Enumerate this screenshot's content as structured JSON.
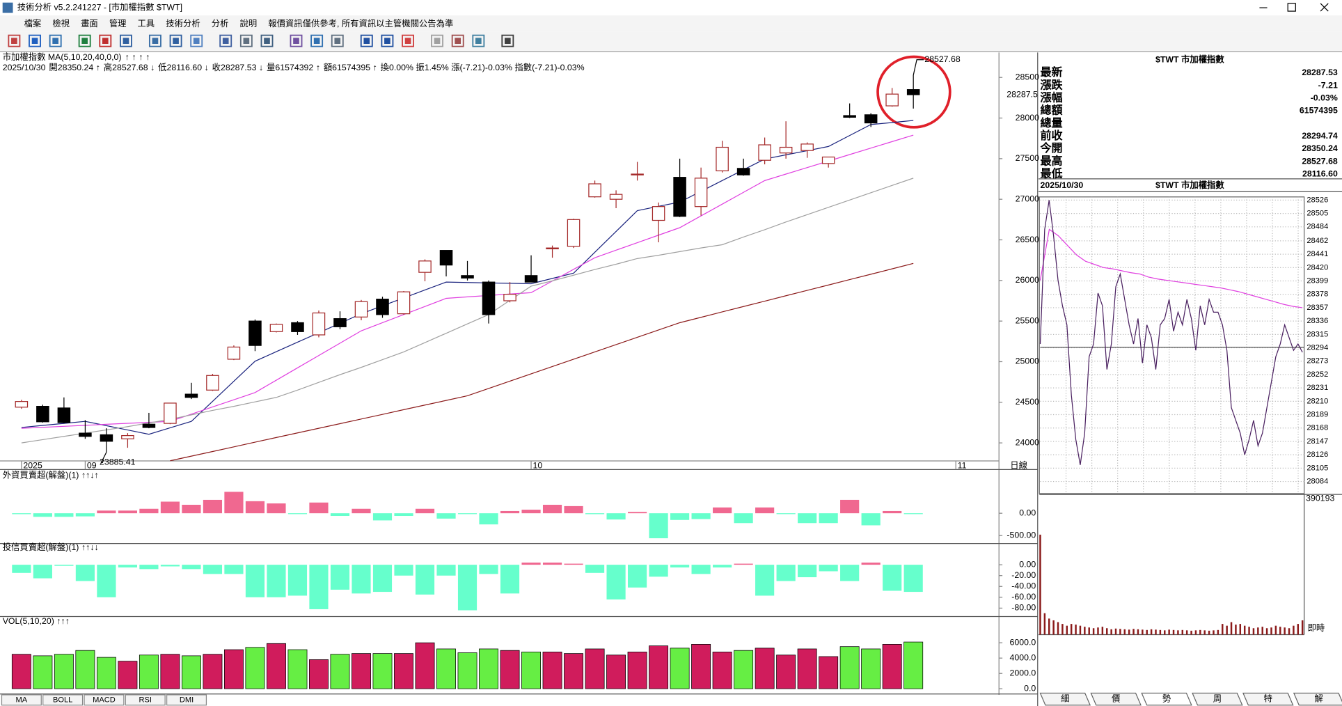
{
  "window": {
    "title": "技術分析 v5.2.241227 - [市加權指數 $TWT]"
  },
  "menu": [
    "檔案",
    "檢視",
    "畫面",
    "管理",
    "工具",
    "技術分析",
    "分析",
    "說明",
    "報價資訊僅供參考, 所有資訊以主管機關公告為準"
  ],
  "main_chart": {
    "type": "candlestick",
    "header": "市加權指數 MA(5,10,20,40,0,0)",
    "arrows": [
      "↑",
      "↑",
      "↑",
      "↑"
    ],
    "info": [
      {
        "text": "2025/10/30",
        "color": "#000000"
      },
      {
        "text": "開28350.24 ↑",
        "color": "#d00000"
      },
      {
        "text": "高28527.68 ↓",
        "color": "#d00000"
      },
      {
        "text": "低28116.60 ↓",
        "color": "#000000"
      },
      {
        "text": "收28287.53 ↓",
        "color": "#000000"
      },
      {
        "text": "量61574392 ↑",
        "color": "#000000"
      },
      {
        "text": "額61574395 ↑",
        "color": "#000000"
      },
      {
        "text": "換0.00% 振1.45% 漲(-7.21)-0.03% 指數(-7.21)-0.03%",
        "color": "#000000"
      }
    ],
    "categories": [
      "2025",
      null,
      null,
      "09",
      null,
      null,
      null,
      null,
      null,
      null,
      null,
      null,
      null,
      null,
      null,
      null,
      null,
      null,
      null,
      null,
      null,
      null,
      null,
      null,
      "10",
      null,
      null,
      null,
      null,
      null,
      null,
      null,
      null,
      null,
      null,
      null,
      null,
      null,
      null,
      null,
      null,
      null,
      null,
      null,
      "11"
    ],
    "open": [
      24440,
      24450,
      24430,
      24120,
      24100,
      24050,
      24230,
      24240,
      24600,
      24650,
      25030,
      25500,
      25370,
      25480,
      25330,
      25530,
      25550,
      25770,
      25590,
      26100,
      26370,
      26060,
      25980,
      25750,
      26060,
      26390,
      26420,
      27030,
      27000,
      27300,
      26740,
      27270,
      26910,
      27350,
      27380,
      27480,
      27570,
      27600,
      27440,
      28030,
      28040,
      28150,
      28350.24,
      null,
      null
    ],
    "high": [
      24530,
      24470,
      24560,
      24280,
      24180,
      24120,
      24370,
      24490,
      24740,
      24850,
      25200,
      25520,
      25470,
      25500,
      25630,
      25620,
      25760,
      25800,
      25870,
      26260,
      26370,
      26240,
      26000,
      25980,
      26310,
      26430,
      26760,
      27230,
      27110,
      27460,
      26960,
      27500,
      27390,
      27720,
      27500,
      27760,
      27960,
      27700,
      27520,
      28180,
      28060,
      28370,
      28527.68,
      null,
      null
    ],
    "low": [
      24420,
      24250,
      24240,
      24050,
      23885.41,
      23940,
      24180,
      24230,
      24540,
      24640,
      25020,
      25130,
      25360,
      25330,
      25300,
      25400,
      25510,
      25540,
      25580,
      25990,
      26050,
      26000,
      25470,
      25730,
      25980,
      26280,
      26400,
      27020,
      26890,
      27230,
      26470,
      26780,
      26800,
      27330,
      27290,
      27430,
      27500,
      27510,
      27390,
      28000,
      27890,
      28140,
      28116.6,
      null,
      null
    ],
    "close": [
      24510,
      24260,
      24250,
      24080,
      24020,
      24090,
      24190,
      24490,
      24560,
      24830,
      25180,
      25200,
      25460,
      25370,
      25600,
      25430,
      25740,
      25580,
      25860,
      26240,
      26190,
      26030,
      25580,
      25830,
      25980,
      26400,
      26750,
      27190,
      27060,
      27310,
      26910,
      26790,
      27260,
      27640,
      27300,
      27670,
      27640,
      27680,
      27520,
      28010,
      27940,
      28294.74,
      28287.53,
      null,
      null
    ],
    "up_color": "#a52a2a",
    "down_color": "#000000",
    "ma": [
      {
        "color": "#1a237e",
        "values": [
          24190,
          24215,
          24240,
          24265,
          24212,
          24159,
          24106,
          24186,
          24265,
          24512,
          24759,
          25006,
          25123,
          25240,
          25356,
          25473,
          25590,
          25688,
          25785,
          25883,
          25980,
          25975,
          25970,
          25965,
          25960,
          26025,
          26090,
          26347,
          26603,
          26860,
          26913,
          26965,
          27098,
          27230,
          27363,
          27495,
          27547,
          27598,
          27650,
          27785,
          27920,
          27945,
          27970,
          null,
          null
        ]
      },
      {
        "color": "#e040e0",
        "values": [
          24180,
          24192,
          24204,
          24216,
          24229,
          24241,
          24253,
          24265,
          24354,
          24443,
          24531,
          24620,
          24772,
          24924,
          25076,
          25228,
          25380,
          25480,
          25580,
          25680,
          25780,
          25798,
          25815,
          25833,
          25850,
          25993,
          26137,
          26280,
          26373,
          26465,
          26558,
          26650,
          26795,
          26940,
          27085,
          27230,
          27310,
          27390,
          27470,
          27550,
          27630,
          27710,
          27790,
          null,
          null
        ]
      },
      {
        "color": "#a0a0a0",
        "values": [
          24000,
          24040,
          24080,
          24120,
          24160,
          24200,
          24245,
          24290,
          24345,
          24400,
          24450,
          24505,
          24560,
          24650,
          24745,
          24840,
          24930,
          25025,
          25120,
          25235,
          25350,
          25465,
          25580,
          25755,
          25930,
          25995,
          26065,
          26135,
          26200,
          26270,
          26310,
          26355,
          26400,
          26440,
          26535,
          26625,
          26720,
          26810,
          26900,
          26990,
          27080,
          27170,
          27260,
          null,
          null
        ]
      },
      {
        "color": "#8b1a1a",
        "values": [
          null,
          null,
          null,
          null,
          null,
          null,
          null,
          23780,
          23837,
          23894,
          23951,
          24009,
          24066,
          24123,
          24180,
          24237,
          24294,
          24351,
          24409,
          24466,
          24523,
          24580,
          24670,
          24760,
          24850,
          24940,
          25030,
          25120,
          25210,
          25300,
          25390,
          25480,
          25546,
          25613,
          25679,
          25745,
          25812,
          25878,
          25944,
          26011,
          26077,
          26143,
          26210,
          null,
          null
        ]
      }
    ],
    "ylim": [
      23778,
      28797
    ],
    "yticks": [
      24000,
      24500,
      25000,
      25500,
      26000,
      26500,
      27000,
      27500,
      28000,
      28500
    ],
    "last_price": 28287.5,
    "last_price_color": "#d00000",
    "period_label": "日線"
  },
  "foreign": {
    "title": "外資買賣超(解盤)(1) ↑↑↓↑",
    "values": [
      -20,
      -80,
      -80,
      -70,
      60,
      60,
      100,
      260,
      190,
      300,
      480,
      270,
      220,
      -10,
      240,
      -60,
      100,
      -160,
      -60,
      100,
      -120,
      -10,
      -250,
      50,
      80,
      190,
      160,
      -20,
      -140,
      30,
      -560,
      -150,
      -130,
      130,
      -220,
      130,
      -10,
      -220,
      -220,
      300,
      -270,
      50,
      -10,
      null,
      null
    ],
    "pos_color": "#f06890",
    "neg_color": "#66ffcc",
    "ylim": [
      -677,
      710
    ],
    "yticks": [
      {
        "value": 0,
        "label": "0.00"
      },
      {
        "value": -500,
        "label": "-500.00"
      }
    ]
  },
  "trust": {
    "title": "投信買賣超(解盤)(1) ↑↑↓↓",
    "values": [
      -15,
      -25,
      -2,
      -30,
      -60,
      -5,
      -8,
      -3,
      -8,
      -17,
      -17,
      -60,
      -60,
      -57,
      -82,
      -46,
      -53,
      -50,
      -20,
      -55,
      -20,
      -84,
      -17,
      -53,
      4,
      4,
      2,
      -15,
      -64,
      -42,
      -22,
      -5,
      -17,
      -5,
      2,
      -57,
      -30,
      -23,
      -12,
      -30,
      4,
      -48,
      -50,
      null,
      null
    ],
    "pos_color": "#f06890",
    "neg_color": "#66ffcc",
    "ylim": [
      -95.6,
      23.4
    ],
    "yticks": [
      {
        "value": 0,
        "label": "0.00"
      },
      {
        "value": -20,
        "label": "-20.00"
      },
      {
        "value": -40,
        "label": "-40.00"
      },
      {
        "value": -60,
        "label": "-60.00"
      },
      {
        "value": -80,
        "label": "-80.00"
      }
    ]
  },
  "volume": {
    "title": "VOL(5,10,20) ↑↑↑",
    "values": [
      4500,
      4300,
      4500,
      5000,
      4100,
      3600,
      4400,
      4500,
      4300,
      4500,
      5100,
      5400,
      5900,
      5100,
      3800,
      4500,
      4600,
      4600,
      4600,
      6000,
      5200,
      4700,
      5200,
      5000,
      4800,
      4800,
      4600,
      5200,
      4400,
      4800,
      5600,
      5300,
      5800,
      4800,
      5000,
      5300,
      4400,
      5200,
      4200,
      5500,
      5200,
      5800,
      6100,
      null,
      null
    ],
    "up_color": "#d01c5c",
    "down_color": "#66ee44",
    "ylim": [
      -680,
      7960
    ],
    "yticks": [
      {
        "value": 0,
        "label": "0.0"
      },
      {
        "value": 2000,
        "label": "2000.0"
      },
      {
        "value": 4000,
        "label": "4000.0"
      },
      {
        "value": 6000,
        "label": "6000.0"
      }
    ]
  },
  "bottom_tabs": [
    "MA",
    "BOLL",
    "MACD",
    "RSI",
    "DMI"
  ],
  "quote": {
    "title": "$TWT 市加權指數",
    "rows": [
      {
        "label": "最新",
        "value": "28287.53",
        "color": "#00a000"
      },
      {
        "label": "漲跌",
        "value": "-7.21",
        "color": "#00a000"
      },
      {
        "label": "漲幅",
        "value": "-0.03%",
        "color": "#00a000"
      },
      {
        "label": "總額",
        "value": "61574395",
        "color": "#000000"
      },
      {
        "label": "總量",
        "value": null,
        "color": "#000000"
      },
      {
        "label": "前收",
        "value": "28294.74",
        "color": "#000000"
      },
      {
        "label": "今開",
        "value": "28350.24",
        "color": "#d00000"
      },
      {
        "label": "最高",
        "value": "28527.68",
        "color": "#d00000"
      },
      {
        "label": "最低",
        "value": "28116.60",
        "color": "#00a000"
      }
    ]
  },
  "intraday": {
    "date": "2025/10/30",
    "title": "$TWT 市加權指數",
    "price": [
      28300,
      28480,
      28526,
      28470,
      28400,
      28360,
      28330,
      28220,
      28150,
      28110,
      28160,
      28280,
      28300,
      28380,
      28360,
      28260,
      28300,
      28390,
      28410,
      28370,
      28330,
      28300,
      28340,
      28270,
      28330,
      28310,
      28260,
      28330,
      28340,
      28370,
      28320,
      28350,
      28330,
      28370,
      28340,
      28290,
      28360,
      28330,
      28370,
      28350,
      28350,
      28330,
      28290,
      28200,
      28180,
      28160,
      28126,
      28150,
      28180,
      28140,
      28160,
      28200,
      28240,
      28280,
      28300,
      28330,
      28310,
      28290,
      28300,
      28287
    ],
    "avg": [
      28400,
      28480,
      28470,
      28455,
      28440,
      28430,
      28425,
      28420,
      28418,
      28415,
      28412,
      28410,
      28405,
      28402,
      28400,
      28398,
      28396,
      28394,
      28392,
      28390,
      28388,
      28385,
      28382,
      28378,
      28374,
      28370,
      28366,
      28362,
      28359,
      28357
    ],
    "price_color": "#4a2060",
    "avg_color": "#e040e0",
    "reference": 28294.74,
    "ylim": [
      28065,
      28531
    ],
    "yticks": [
      28526,
      28505,
      28484,
      28462,
      28441,
      28420,
      28399,
      28378,
      28357,
      28336,
      28315,
      28294,
      28273,
      28252,
      28231,
      28210,
      28189,
      28168,
      28147,
      28126,
      28105,
      28084
    ],
    "volume": [
      280000,
      60000,
      45000,
      40000,
      35000,
      30000,
      25000,
      30000,
      28000,
      25000,
      22000,
      20000,
      18000,
      20000,
      22000,
      18000,
      15000,
      17000,
      16000,
      15000,
      14000,
      16000,
      15000,
      14000,
      13000,
      15000,
      14000,
      13000,
      12000,
      14000,
      13000,
      12000,
      13000,
      12000,
      11000,
      12000,
      13000,
      12000,
      11000,
      12000,
      13000,
      30000,
      25000,
      35000,
      28000,
      30000,
      25000,
      22000,
      18000,
      20000,
      22000,
      18000,
      20000,
      25000,
      22000,
      20000,
      18000,
      25000,
      30000,
      40000
    ],
    "volume_max": 390193,
    "volume_color": "#8b1a1a",
    "time_label": "即時"
  },
  "side_tabs": [
    "細",
    "價",
    "勢",
    "周",
    "特",
    "解"
  ]
}
